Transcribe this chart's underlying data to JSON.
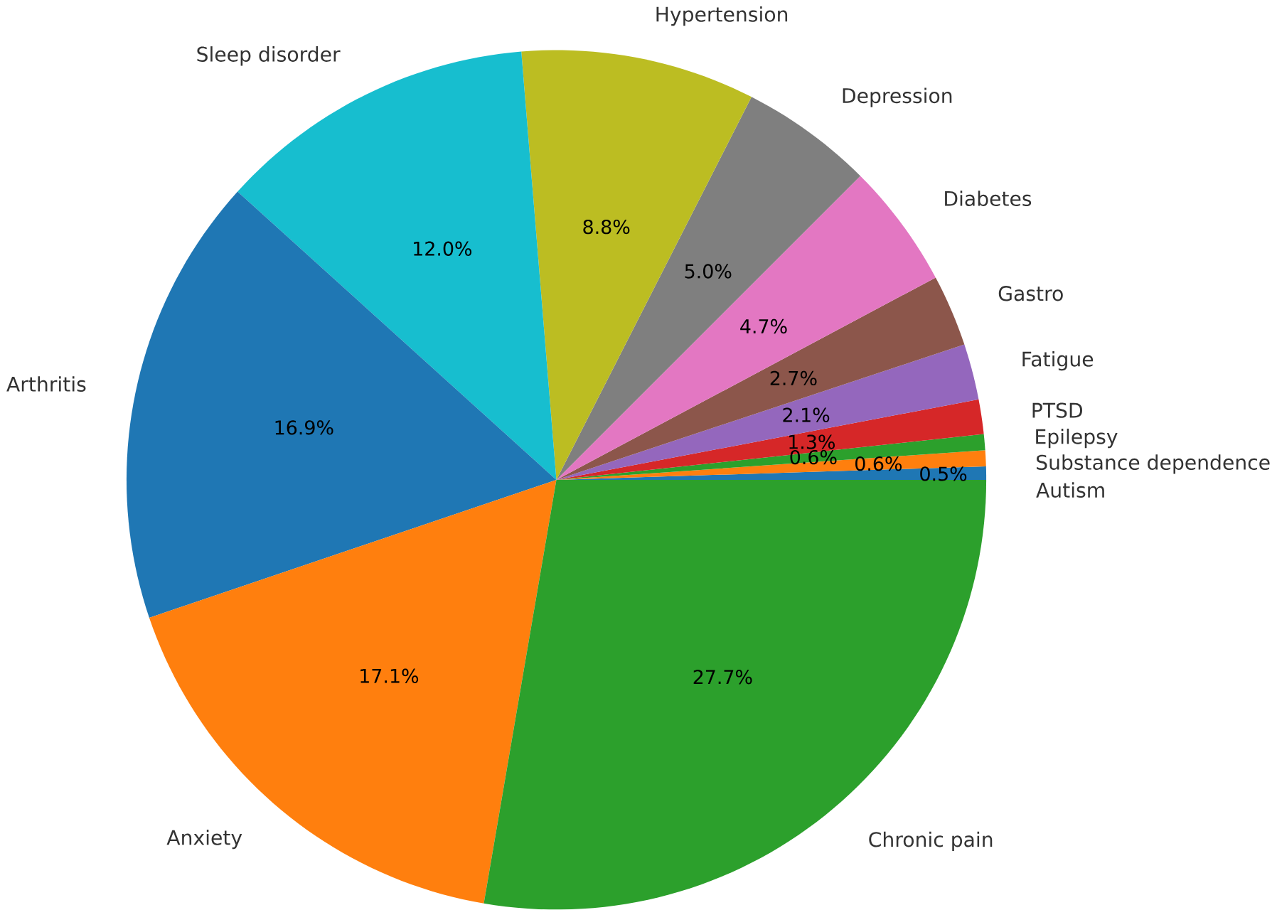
{
  "chart_data": {
    "type": "pie",
    "categories": [
      "Autism",
      "Substance dependence",
      "Epilepsy",
      "PTSD",
      "Fatigue",
      "Gastro",
      "Diabetes",
      "Depression",
      "Hypertension",
      "Sleep disorder",
      "Arthritis",
      "Anxiety",
      "Chronic pain"
    ],
    "values": [
      0.5,
      0.6,
      0.6,
      1.3,
      2.1,
      2.7,
      4.7,
      5.0,
      8.8,
      12.0,
      16.9,
      17.1,
      27.7
    ],
    "value_labels": [
      "0.5%",
      "0.6%",
      "0.6%",
      "1.3%",
      "2.1%",
      "2.7%",
      "4.7%",
      "5.0%",
      "8.8%",
      "12.0%",
      "16.9%",
      "17.1%",
      "27.7%"
    ],
    "colors": [
      "#1f77b4",
      "#ff7f0e",
      "#2ca02c",
      "#d62728",
      "#9467bd",
      "#8c564b",
      "#e377c2",
      "#7f7f7f",
      "#bcbd22",
      "#17becf",
      "#1f77b4",
      "#ff7f0e",
      "#2ca02c"
    ]
  }
}
